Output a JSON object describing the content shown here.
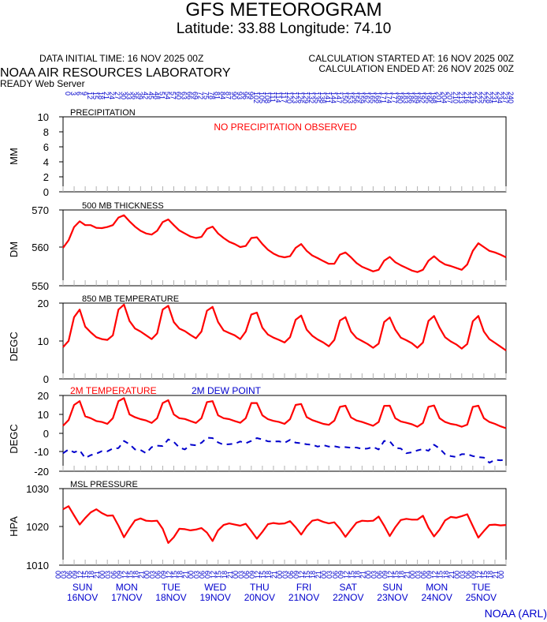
{
  "header": {
    "title": "GFS METEOROGRAM",
    "coords": "Latitude: 33.88 Longitude:  74.10",
    "init_time": "DATA INITIAL TIME: 16 NOV 2025 00Z",
    "calc_started": "CALCULATION STARTED AT: 16 NOV 2025 00Z",
    "calc_ended": "CALCULATION ENDED AT: 26 NOV 2025 00Z",
    "org": "NOAA AIR RESOURCES LABORATORY",
    "server": "READY Web Server"
  },
  "footer": {
    "credit": "NOAA (ARL)"
  },
  "colors": {
    "red": "#ff0000",
    "blue": "#0000cc",
    "black": "#000000"
  },
  "chart_data": [
    {
      "type": "bar",
      "title": "PRECIPITATION",
      "ylabel": "MM",
      "ylim": [
        0,
        10
      ],
      "yticks": [
        "0",
        "2",
        "4",
        "6",
        "8",
        "10"
      ],
      "annotation": "NO PRECIPITATION OBSERVED",
      "values": []
    },
    {
      "type": "line",
      "title": "500 MB  THICKNESS",
      "ylabel": "DM",
      "ylim": [
        550,
        570
      ],
      "yticks": [
        "550",
        "560",
        "570"
      ],
      "series": [
        {
          "values": [
            560,
            562,
            565.5,
            567,
            566,
            566,
            565.3,
            565.2,
            565.5,
            566,
            568,
            568.6,
            567,
            565.6,
            564.5,
            563.8,
            563.5,
            564.5,
            566.8,
            567.5,
            566,
            564.6,
            563.8,
            563,
            562.6,
            562.9,
            565,
            565.6,
            563.8,
            562.6,
            561.6,
            561,
            560.2,
            560.5,
            562.6,
            562.8,
            561,
            559.5,
            558.5,
            557.8,
            557.5,
            557.8,
            560,
            561,
            559.2,
            558,
            557.3,
            556.5,
            555.8,
            555.8,
            558.2,
            558.8,
            557.5,
            556,
            555,
            554.4,
            553.8,
            554.2,
            556.6,
            557.6,
            556.2,
            555.4,
            554.7,
            554,
            553.6,
            554.2,
            556.6,
            557.8,
            556.5,
            555.6,
            555.2,
            554.7,
            554.2,
            555.6,
            559.2,
            561.2,
            560.2,
            559.2,
            558.8,
            558.2,
            557.5
          ]
        }
      ]
    },
    {
      "type": "line",
      "title": "850 MB  TEMPERATURE",
      "ylabel": "DEGC",
      "ylim": [
        0,
        20
      ],
      "yticks": [
        "0",
        "10",
        "20"
      ],
      "series": [
        {
          "values": [
            8.4,
            10,
            16.3,
            18.3,
            13.8,
            12.3,
            11,
            10.5,
            10.3,
            11.5,
            18.3,
            19.6,
            15.3,
            13.3,
            12.5,
            11.5,
            10.5,
            12,
            18.3,
            19.3,
            15,
            13.3,
            12.6,
            11.6,
            10.7,
            12.5,
            18,
            19,
            15,
            12.8,
            12.1,
            11.5,
            10.5,
            12.5,
            17,
            17.5,
            13.5,
            11.7,
            10.9,
            10.3,
            9.6,
            11,
            15.6,
            16.7,
            13,
            11.4,
            10.4,
            9.6,
            8.6,
            10.3,
            15.4,
            16.3,
            12.5,
            10.8,
            10,
            9.2,
            8.2,
            9.3,
            15,
            16.2,
            13,
            10.9,
            10.2,
            9.4,
            8.2,
            9.6,
            15.3,
            16.6,
            13.5,
            11,
            9.9,
            9.1,
            8,
            9.2,
            15.2,
            16.6,
            12.5,
            10.5,
            9.5,
            8.5,
            7.5
          ]
        }
      ]
    },
    {
      "type": "line",
      "title": "",
      "ylabel": "DEGC",
      "ylim": [
        -20,
        20
      ],
      "yticks": [
        "-20",
        "-10",
        "0",
        "10",
        "20"
      ],
      "series": [
        {
          "name": "2M TEMPERATURE",
          "values": [
            4,
            7,
            15,
            17,
            9,
            8,
            6.5,
            6,
            5,
            8,
            17,
            18.6,
            10,
            8.5,
            7.5,
            6.8,
            5.5,
            8,
            16,
            17.5,
            10,
            8,
            7.6,
            6.5,
            5.5,
            8,
            16.5,
            17,
            9.5,
            8,
            7.5,
            6.5,
            5.6,
            8,
            16,
            16,
            9.5,
            7.5,
            6.6,
            6,
            5,
            7.5,
            15,
            15.5,
            8.6,
            7,
            6,
            5,
            4.5,
            6.7,
            14,
            14.6,
            8.4,
            6.8,
            6,
            5,
            4,
            6,
            14.5,
            14.6,
            8,
            6.3,
            5.6,
            4.8,
            3.5,
            5.5,
            14,
            14.7,
            8,
            6,
            5,
            4.5,
            3.5,
            4.6,
            14,
            14.6,
            8,
            6,
            5,
            3.7,
            2.7
          ]
        },
        {
          "name": "2M  DEW POINT",
          "values": [
            -10.5,
            -8.5,
            -10,
            -9,
            -13,
            -11.5,
            -10.7,
            -9.4,
            -9.5,
            -8,
            -7.8,
            -4,
            -5.7,
            -8.5,
            -8.8,
            -10.5,
            -7.3,
            -6.5,
            -6.7,
            -3.2,
            -4.5,
            -7.5,
            -8.5,
            -6,
            -6.3,
            -5,
            -2.3,
            -2.5,
            -4.8,
            -6,
            -5.7,
            -5.5,
            -4.3,
            -5.2,
            -4,
            -2.5,
            -3.2,
            -4.2,
            -4.3,
            -4.2,
            -5,
            -3.4,
            -4.9,
            -5.2,
            -5.8,
            -6,
            -7,
            -6.2,
            -7,
            -6.8,
            -7.4,
            -7.3,
            -7.6,
            -7.5,
            -8.2,
            -8,
            -7.2,
            -8.5,
            -4,
            -4.2,
            -7.7,
            -8,
            -10.5,
            -10,
            -9,
            -8.3,
            -9.2,
            -6,
            -8,
            -11,
            -12,
            -12.5,
            -11,
            -11,
            -12,
            -12.6,
            -12.8,
            -15.5,
            -14,
            -14.2,
            -14
          ]
        }
      ]
    },
    {
      "type": "line",
      "title": "MSL PRESSURE",
      "ylabel": "HPA",
      "ylim": [
        1010,
        1030
      ],
      "yticks": [
        "1010",
        "1020",
        "1030"
      ],
      "series": [
        {
          "values": [
            1024.6,
            1025.4,
            1023,
            1020.6,
            1022.3,
            1023.8,
            1024.6,
            1023.6,
            1022.9,
            1023,
            1020.3,
            1017.3,
            1019.6,
            1021.7,
            1022.2,
            1021.6,
            1021.5,
            1021.6,
            1019.5,
            1015.8,
            1017.3,
            1019.5,
            1019.4,
            1019.1,
            1019.3,
            1019.7,
            1018.5,
            1016.3,
            1019.1,
            1020.5,
            1020.9,
            1020.6,
            1020.3,
            1020.8,
            1018.9,
            1016.9,
            1018.7,
            1020.7,
            1021,
            1020.8,
            1020.9,
            1021.5,
            1019.9,
            1018,
            1020.1,
            1021.6,
            1021.9,
            1021.3,
            1020.9,
            1021.2,
            1019.5,
            1017.4,
            1019.3,
            1021.1,
            1021.6,
            1021.5,
            1021.6,
            1022.7,
            1020.3,
            1017.6,
            1019.9,
            1021.8,
            1022.1,
            1021.9,
            1021.9,
            1022.9,
            1019.8,
            1017.5,
            1019.3,
            1021.7,
            1022.6,
            1022.4,
            1022.8,
            1023.3,
            1020.2,
            1017.2,
            1018.9,
            1020.5,
            1020.6,
            1020.4,
            1020.5
          ]
        }
      ]
    }
  ],
  "x_axis": {
    "top_labels": [
      "0",
      "3",
      "6",
      "9",
      "12",
      "15",
      "18",
      "21",
      "24",
      "27",
      "30",
      "33",
      "36",
      "39",
      "42",
      "45",
      "48",
      "51",
      "54",
      "57",
      "60",
      "63",
      "66",
      "69",
      "72",
      "75",
      "78",
      "81",
      "84",
      "87",
      "90",
      "93",
      "96",
      "99",
      "102",
      "105",
      "108",
      "111",
      "114",
      "117",
      "120",
      "123",
      "126",
      "129",
      "132",
      "135",
      "138",
      "141",
      "144",
      "147",
      "150",
      "153",
      "156",
      "159",
      "162",
      "165",
      "168",
      "171",
      "174",
      "177",
      "180",
      "183",
      "186",
      "189",
      "192",
      "195",
      "198",
      "201",
      "204",
      "207",
      "210",
      "213",
      "216",
      "219",
      "222",
      "225",
      "228",
      "231",
      "234",
      "237",
      "240"
    ],
    "hour_labels": [
      "00",
      "03",
      "06",
      "09",
      "12",
      "15",
      "18",
      "21"
    ],
    "days": [
      {
        "dow": "SUN",
        "date": "16NOV"
      },
      {
        "dow": "MON",
        "date": "17NOV"
      },
      {
        "dow": "TUE",
        "date": "18NOV"
      },
      {
        "dow": "WED",
        "date": "19NOV"
      },
      {
        "dow": "THU",
        "date": "20NOV"
      },
      {
        "dow": "FRI",
        "date": "21NOV"
      },
      {
        "dow": "SAT",
        "date": "22NOV"
      },
      {
        "dow": "SUN",
        "date": "23NOV"
      },
      {
        "dow": "MON",
        "date": "24NOV"
      },
      {
        "dow": "TUE",
        "date": "25NOV"
      }
    ]
  }
}
